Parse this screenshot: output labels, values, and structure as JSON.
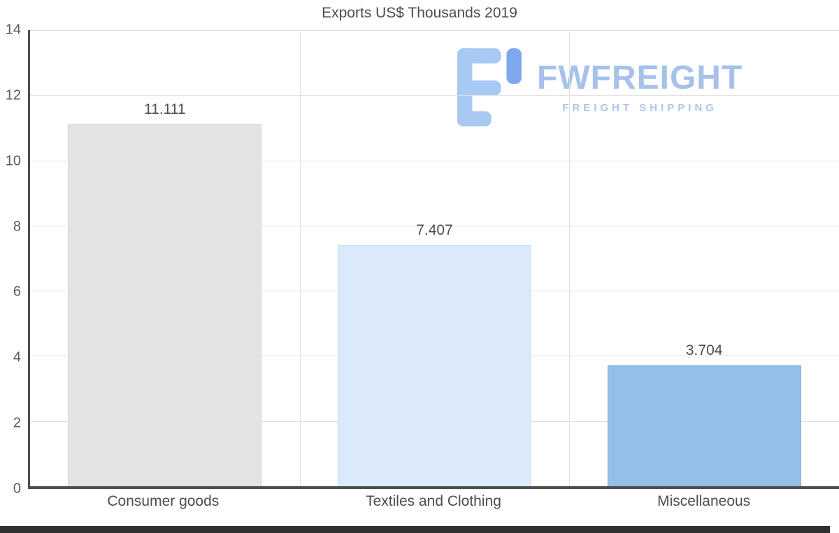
{
  "chart_data": {
    "type": "bar",
    "title": "Exports US$ Thousands 2019",
    "categories": [
      "Consumer goods",
      "Textiles and Clothing",
      "Miscellaneous"
    ],
    "values": [
      11.111,
      7.407,
      3.704
    ],
    "value_labels": [
      "11.111",
      "7.407",
      "3.704"
    ],
    "bar_colors": [
      "#e4e4e4",
      "#daeafb",
      "#93bfe8"
    ],
    "bar_border_colors": [
      "#d4d4d4",
      "#c8ddf3",
      "#82b1dd"
    ],
    "ylim": [
      0,
      14
    ],
    "yticks": [
      0,
      2,
      4,
      6,
      8,
      10,
      12,
      14
    ],
    "grid": true,
    "legend": false,
    "xlabel": "",
    "ylabel": ""
  },
  "watermark": {
    "brand": "FWFREIGHT",
    "tagline": "FREIGHT SHIPPING",
    "brand_color": "#a6c1ea",
    "tagline_color": "#aec5ec",
    "icon_light_color": "#a8c9f3",
    "icon_dark_color": "#7fa9ec"
  }
}
